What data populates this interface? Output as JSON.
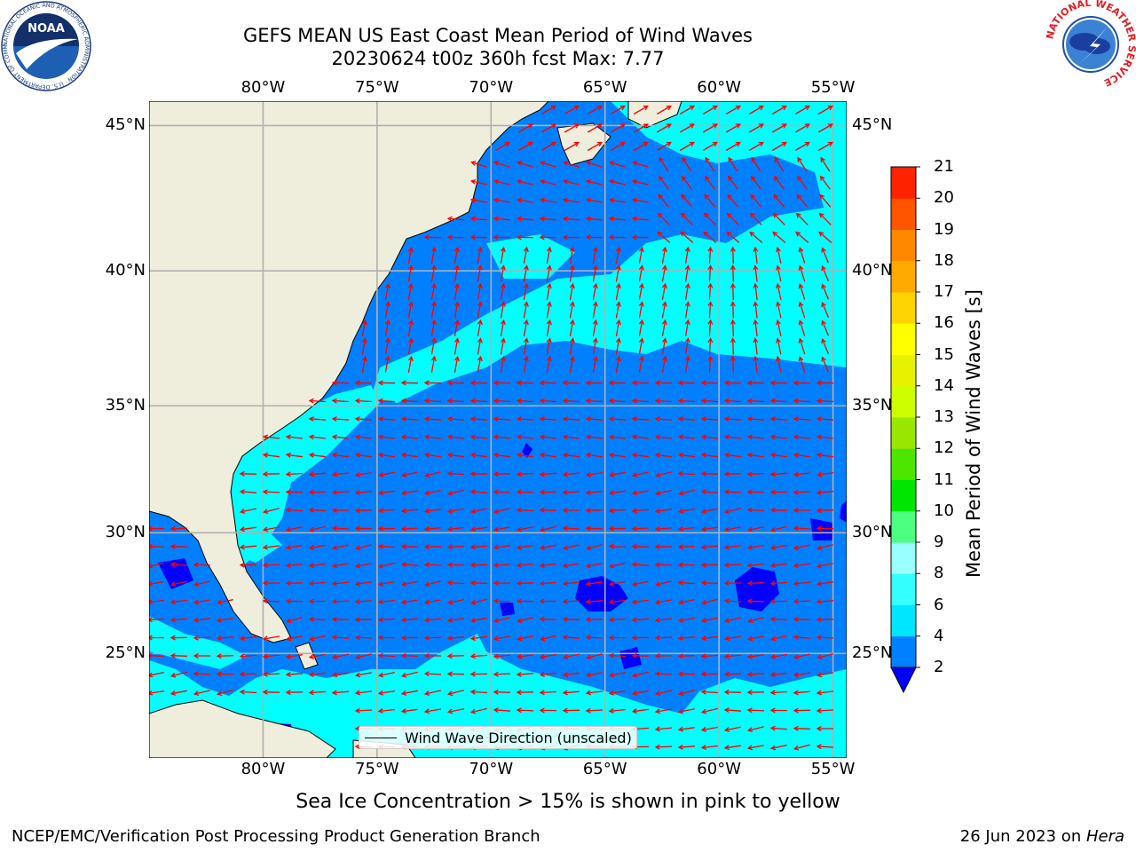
{
  "header": {
    "title_line1": "GEFS MEAN US East Coast Mean Period of Wind Waves",
    "title_line2": "20230624 t00z 360h fcst   Max: 7.77"
  },
  "logos": {
    "left": {
      "name": "noaa-logo",
      "text": "NOAA",
      "ring_text": "NATIONAL OCEANIC AND ATMOSPHERIC ADMINISTRATION · U.S. DEPARTMENT OF COMMERCE"
    },
    "right": {
      "name": "nws-logo",
      "ring_text": "NATIONAL WEATHER SERVICE"
    }
  },
  "map": {
    "lon_labels": [
      "80°W",
      "75°W",
      "70°W",
      "65°W",
      "60°W",
      "55°W"
    ],
    "lat_labels": [
      "45°N",
      "40°N",
      "35°N",
      "30°N",
      "25°N"
    ],
    "lon_range": [
      -85,
      -54.4
    ],
    "lat_range": [
      20.5,
      45.8
    ],
    "land_color": "#efeedc",
    "grid_color": "#b0b0b0",
    "arrow_color": "#ff0000",
    "legend_label": "Wind Wave Direction (unscaled)"
  },
  "colorbar": {
    "title": "Mean Period of Wind Waves [s]",
    "tick_labels": [
      "2",
      "4",
      "6",
      "8",
      "9",
      "10",
      "11",
      "12",
      "13",
      "14",
      "15",
      "16",
      "17",
      "18",
      "19",
      "20",
      "21"
    ],
    "colors": [
      "#0080ff",
      "#00e6ff",
      "#33ffff",
      "#99ffff",
      "#4dff80",
      "#00e600",
      "#4ce600",
      "#99e600",
      "#ccff00",
      "#e6f200",
      "#ffff00",
      "#ffd400",
      "#ffaa00",
      "#ff8800",
      "#ff5500",
      "#ff2200"
    ],
    "under_color": "#0000ff"
  },
  "footer": {
    "subtitle": "Sea Ice Concentration > 15% is shown in pink to yellow",
    "left": "NCEP/EMC/Verification Post Processing Product Generation Branch",
    "right_prefix": "26 Jun 2023 on ",
    "right_machine": "Hera"
  }
}
